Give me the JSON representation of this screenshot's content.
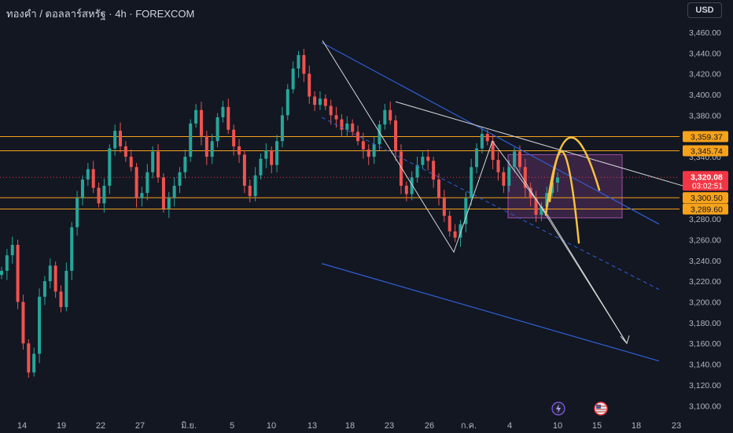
{
  "header": {
    "symbol_title": "ทองคำ / ดอลลาร์สหรัฐ · 4h · FOREXCOM",
    "currency": "USD"
  },
  "colors": {
    "background": "#131722",
    "up_candle": "#26a69a",
    "down_candle": "#ef5350",
    "level_line": "#f7a21b",
    "channel": "#2f5fd6",
    "zigzag": "#d6d6d6",
    "projection": "#f5c242",
    "zone": "#5a2f5f",
    "price_label": "#f23645"
  },
  "icons": [
    "lightning-icon",
    "us-flag-icon"
  ],
  "chart_data": {
    "type": "candlestick",
    "title": "ทองคำ / ดอลลาร์สหรัฐ · 4h · FOREXCOM",
    "ylim": [
      3090,
      3480
    ],
    "y_ticks": [
      "3,100.00",
      "3,120.00",
      "3,140.00",
      "3,160.00",
      "3,180.00",
      "3,200.00",
      "3,220.00",
      "3,240.00",
      "3,260.00",
      "3,280.00",
      "3,300.00",
      "3,320.00",
      "3,340.00",
      "3,360.00",
      "3,380.00",
      "3,400.00",
      "3,420.00",
      "3,440.00",
      "3,460.00"
    ],
    "x_ticks": [
      "14",
      "19",
      "22",
      "27",
      "มิ.ย.",
      "5",
      "10",
      "13",
      "18",
      "23",
      "26",
      "ก.ค.",
      "4",
      "10",
      "15",
      "18",
      "23"
    ],
    "grid": false,
    "price_series_close": [
      3230,
      3245,
      3255,
      3200,
      3160,
      3132,
      3150,
      3205,
      3220,
      3235,
      3210,
      3195,
      3230,
      3272,
      3300,
      3318,
      3328,
      3310,
      3295,
      3312,
      3348,
      3365,
      3350,
      3340,
      3330,
      3300,
      3305,
      3325,
      3345,
      3320,
      3290,
      3300,
      3312,
      3325,
      3340,
      3372,
      3385,
      3360,
      3340,
      3355,
      3378,
      3388,
      3366,
      3350,
      3342,
      3312,
      3302,
      3322,
      3338,
      3346,
      3332,
      3355,
      3380,
      3405,
      3425,
      3438,
      3420,
      3398,
      3390,
      3396,
      3389,
      3380,
      3376,
      3366,
      3372,
      3364,
      3355,
      3347,
      3340,
      3352,
      3371,
      3385,
      3375,
      3345,
      3312,
      3304,
      3320,
      3332,
      3340,
      3336,
      3318,
      3300,
      3283,
      3268,
      3262,
      3275,
      3300,
      3330,
      3348,
      3362,
      3355,
      3337,
      3325,
      3312,
      3330,
      3345,
      3330,
      3310,
      3300,
      3284,
      3292,
      3305,
      3315,
      3320
    ],
    "horizontal_levels": [
      {
        "label": "3,359.37",
        "value": 3359.37
      },
      {
        "label": "3,345.74",
        "value": 3345.74
      },
      {
        "label": "3,300.50",
        "value": 3300.5
      },
      {
        "label": "3,289.60",
        "value": 3289.6
      }
    ],
    "current_price": {
      "label": "3,320.08",
      "countdown": "03:02:51",
      "value": 3320.08
    }
  }
}
